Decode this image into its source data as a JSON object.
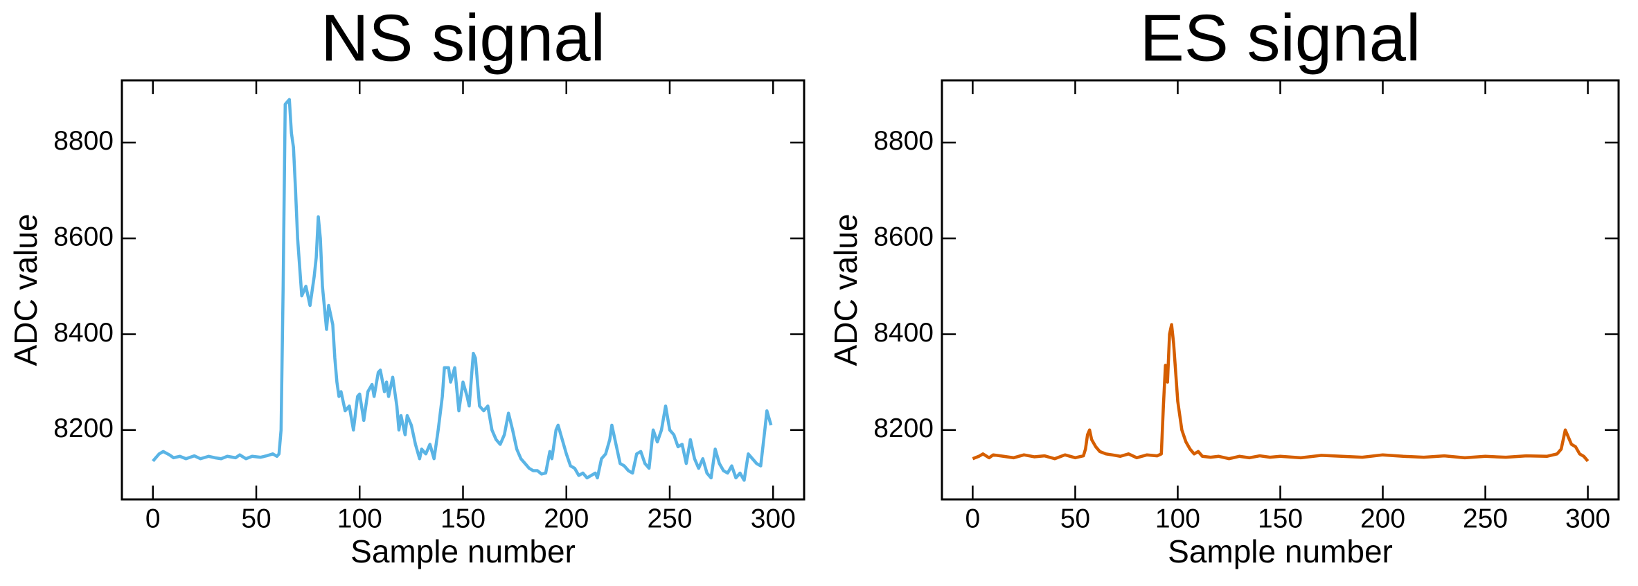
{
  "chart_data": [
    {
      "type": "line",
      "title": "NS signal",
      "xlabel": "Sample number",
      "ylabel": "ADC value",
      "xlim": [
        -15,
        315
      ],
      "ylim": [
        8055,
        8930
      ],
      "xticks": [
        0,
        50,
        100,
        150,
        200,
        250,
        300
      ],
      "yticks": [
        8200,
        8400,
        8600,
        8800
      ],
      "series": [
        {
          "color": "#5ab4e5",
          "x": [
            0,
            3,
            5,
            8,
            10,
            13,
            16,
            20,
            23,
            27,
            30,
            33,
            36,
            40,
            42,
            45,
            48,
            52,
            55,
            58,
            60,
            61,
            62,
            63,
            64,
            66,
            67,
            68,
            69,
            70,
            72,
            74,
            76,
            78,
            79,
            80,
            81,
            82,
            84,
            85,
            87,
            88,
            89,
            90,
            91,
            93,
            95,
            97,
            99,
            100,
            102,
            104,
            106,
            107,
            109,
            110,
            112,
            113,
            114,
            116,
            118,
            119,
            120,
            122,
            123,
            125,
            127,
            129,
            130,
            132,
            134,
            136,
            138,
            140,
            141,
            143,
            144,
            146,
            148,
            150,
            152,
            153,
            155,
            156,
            158,
            160,
            162,
            164,
            166,
            168,
            170,
            172,
            174,
            176,
            178,
            180,
            182,
            184,
            186,
            188,
            190,
            192,
            193,
            195,
            196,
            198,
            200,
            202,
            204,
            206,
            208,
            210,
            212,
            214,
            215,
            217,
            219,
            221,
            222,
            224,
            226,
            228,
            230,
            232,
            234,
            236,
            238,
            240,
            242,
            244,
            246,
            248,
            250,
            252,
            254,
            256,
            258,
            260,
            262,
            264,
            266,
            268,
            270,
            272,
            274,
            276,
            278,
            280,
            282,
            284,
            286,
            288,
            290,
            292,
            294,
            296,
            297,
            298,
            299
          ],
          "values": [
            8135,
            8150,
            8155,
            8148,
            8142,
            8145,
            8140,
            8146,
            8140,
            8145,
            8142,
            8140,
            8145,
            8142,
            8148,
            8140,
            8145,
            8143,
            8146,
            8150,
            8145,
            8150,
            8200,
            8500,
            8880,
            8890,
            8820,
            8790,
            8700,
            8600,
            8480,
            8500,
            8460,
            8520,
            8560,
            8645,
            8600,
            8500,
            8410,
            8460,
            8420,
            8350,
            8300,
            8270,
            8280,
            8240,
            8250,
            8200,
            8270,
            8275,
            8220,
            8280,
            8295,
            8270,
            8320,
            8325,
            8280,
            8300,
            8270,
            8310,
            8250,
            8200,
            8230,
            8190,
            8230,
            8210,
            8170,
            8140,
            8160,
            8150,
            8170,
            8140,
            8200,
            8270,
            8330,
            8330,
            8300,
            8330,
            8240,
            8300,
            8270,
            8250,
            8360,
            8350,
            8250,
            8240,
            8250,
            8200,
            8180,
            8170,
            8190,
            8235,
            8200,
            8160,
            8140,
            8130,
            8120,
            8115,
            8115,
            8108,
            8110,
            8155,
            8140,
            8200,
            8210,
            8180,
            8150,
            8125,
            8120,
            8105,
            8110,
            8100,
            8105,
            8110,
            8100,
            8140,
            8150,
            8180,
            8210,
            8170,
            8130,
            8125,
            8115,
            8110,
            8150,
            8155,
            8130,
            8120,
            8200,
            8175,
            8200,
            8250,
            8200,
            8190,
            8165,
            8170,
            8130,
            8180,
            8140,
            8120,
            8140,
            8110,
            8100,
            8160,
            8130,
            8115,
            8110,
            8125,
            8100,
            8110,
            8095,
            8150,
            8140,
            8130,
            8125,
            8200,
            8240,
            8225,
            8210
          ]
        }
      ]
    },
    {
      "type": "line",
      "title": "ES signal",
      "xlabel": "Sample number",
      "ylabel": "ADC value",
      "xlim": [
        -15,
        315
      ],
      "ylim": [
        8055,
        8930
      ],
      "xticks": [
        0,
        50,
        100,
        150,
        200,
        250,
        300
      ],
      "yticks": [
        8200,
        8400,
        8600,
        8800
      ],
      "series": [
        {
          "color": "#d55e00",
          "x": [
            0,
            3,
            5,
            8,
            10,
            15,
            20,
            25,
            30,
            35,
            40,
            45,
            50,
            54,
            55,
            56,
            57,
            58,
            60,
            62,
            65,
            68,
            72,
            76,
            80,
            85,
            90,
            92,
            93,
            94,
            95,
            96,
            97,
            98,
            100,
            102,
            104,
            106,
            108,
            110,
            112,
            116,
            120,
            125,
            130,
            135,
            140,
            145,
            150,
            160,
            170,
            180,
            190,
            200,
            210,
            220,
            230,
            240,
            250,
            260,
            270,
            280,
            285,
            287,
            289,
            290,
            292,
            294,
            296,
            298,
            300
          ],
          "values": [
            8140,
            8145,
            8150,
            8142,
            8148,
            8145,
            8142,
            8148,
            8144,
            8146,
            8140,
            8148,
            8142,
            8146,
            8160,
            8190,
            8200,
            8180,
            8165,
            8155,
            8150,
            8148,
            8145,
            8150,
            8142,
            8148,
            8146,
            8150,
            8250,
            8335,
            8300,
            8400,
            8420,
            8380,
            8260,
            8200,
            8175,
            8160,
            8150,
            8155,
            8145,
            8143,
            8145,
            8140,
            8145,
            8142,
            8146,
            8143,
            8145,
            8142,
            8147,
            8145,
            8143,
            8148,
            8145,
            8143,
            8146,
            8142,
            8145,
            8143,
            8146,
            8145,
            8150,
            8160,
            8200,
            8190,
            8170,
            8165,
            8150,
            8145,
            8135
          ]
        }
      ]
    }
  ]
}
